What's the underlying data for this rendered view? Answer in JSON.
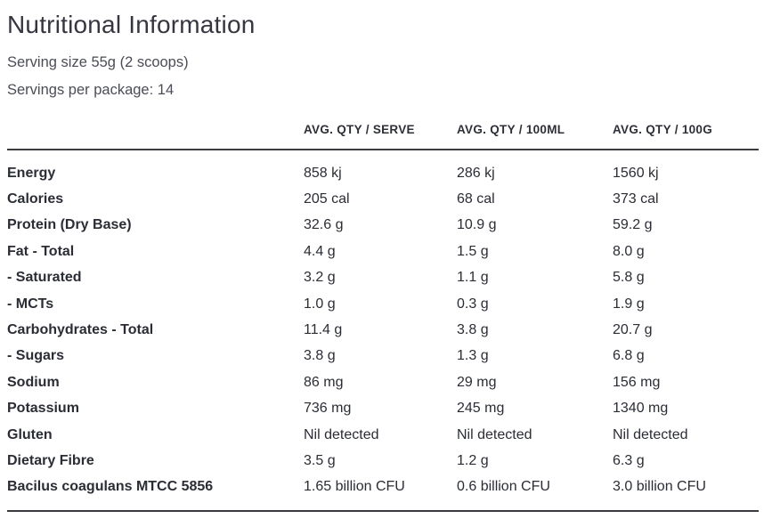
{
  "header": {
    "title": "Nutritional Information",
    "serving_size": "Serving size 55g (2 scoops)",
    "servings_per_package": "Servings per package: 14"
  },
  "table": {
    "columns": [
      "AVG. QTY / SERVE",
      "AVG. QTY / 100ML",
      "AVG. QTY / 100G"
    ],
    "rows": [
      {
        "label": "Energy",
        "per_serve": "858 kj",
        "per_100ml": "286 kj",
        "per_100g": "1560 kj"
      },
      {
        "label": "Calories",
        "per_serve": "205 cal",
        "per_100ml": "68 cal",
        "per_100g": "373 cal"
      },
      {
        "label": "Protein (Dry Base)",
        "per_serve": "32.6 g",
        "per_100ml": "10.9 g",
        "per_100g": "59.2 g"
      },
      {
        "label": "Fat - Total",
        "per_serve": "4.4 g",
        "per_100ml": "1.5 g",
        "per_100g": "8.0 g"
      },
      {
        "label": "- Saturated",
        "per_serve": "3.2 g",
        "per_100ml": "1.1 g",
        "per_100g": "5.8 g"
      },
      {
        "label": "- MCTs",
        "per_serve": "1.0 g",
        "per_100ml": "0.3 g",
        "per_100g": "1.9 g"
      },
      {
        "label": "Carbohydrates - Total",
        "per_serve": "11.4 g",
        "per_100ml": "3.8 g",
        "per_100g": "20.7 g"
      },
      {
        "label": "- Sugars",
        "per_serve": "3.8 g",
        "per_100ml": "1.3 g",
        "per_100g": "6.8 g"
      },
      {
        "label": "Sodium",
        "per_serve": "86 mg",
        "per_100ml": "29 mg",
        "per_100g": "156 mg"
      },
      {
        "label": "Potassium",
        "per_serve": "736 mg",
        "per_100ml": "245 mg",
        "per_100g": "1340 mg"
      },
      {
        "label": "Gluten",
        "per_serve": "Nil detected",
        "per_100ml": "Nil detected",
        "per_100g": "Nil detected"
      },
      {
        "label": "Dietary Fibre",
        "per_serve": "3.5 g",
        "per_100ml": "1.2 g",
        "per_100g": "6.3 g"
      },
      {
        "label": "Bacilus coagulans MTCC 5856",
        "per_serve": "1.65 billion CFU",
        "per_100ml": "0.6 billion CFU",
        "per_100g": "3.0 billion CFU"
      }
    ],
    "colors": {
      "title_color": "#35363f",
      "subtitle_color": "#4b4d56",
      "text_color": "#2b2d35",
      "border_color": "#3a3b41"
    }
  }
}
